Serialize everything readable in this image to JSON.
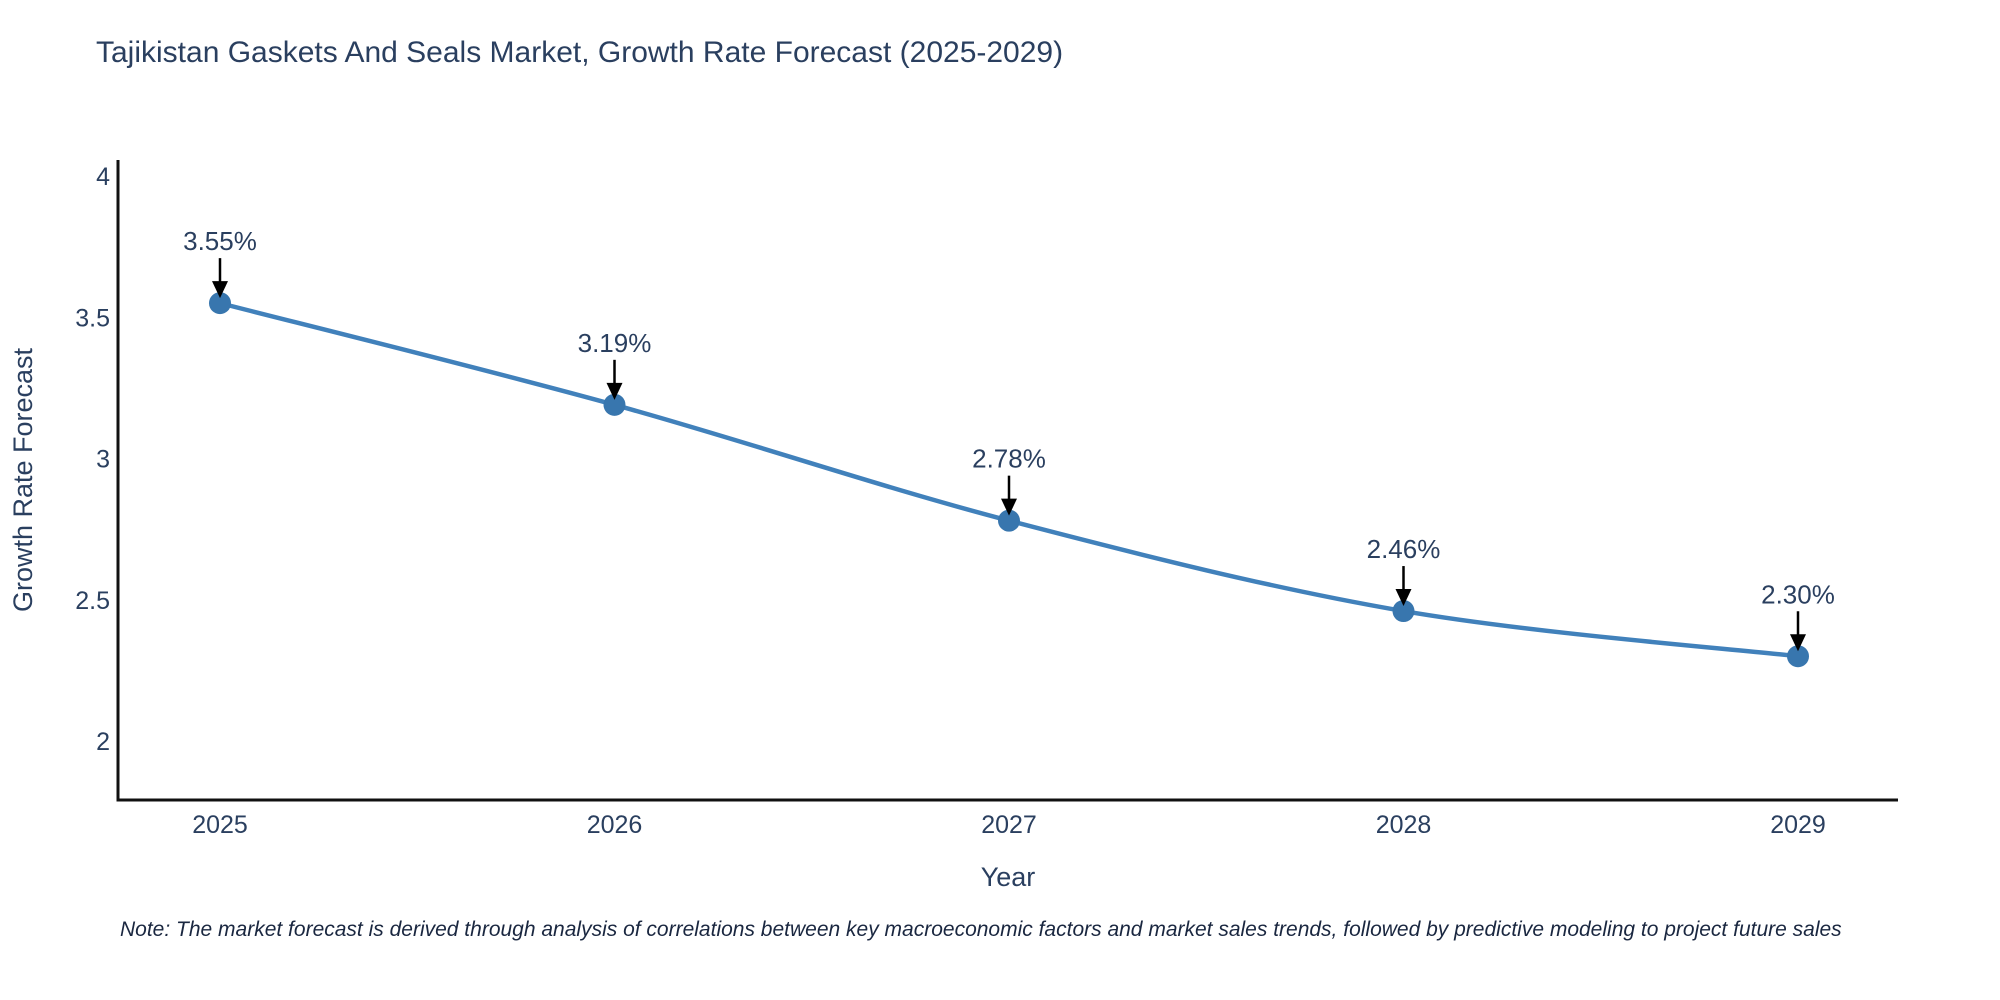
{
  "title": "Tajikistan Gaskets And Seals Market, Growth Rate Forecast (2025-2029)",
  "note": "Note: The market forecast is derived through analysis of correlations between key macroeconomic factors and market sales trends, followed by predictive modeling to project future sales",
  "chart_data": {
    "type": "line",
    "x": [
      2025,
      2026,
      2027,
      2028,
      2029
    ],
    "values": [
      3.55,
      3.19,
      2.78,
      2.46,
      2.3
    ],
    "point_labels": [
      "3.55%",
      "3.19%",
      "2.78%",
      "2.46%",
      "2.30%"
    ],
    "title": "Tajikistan Gaskets And Seals Market, Growth Rate Forecast (2025-2029)",
    "xlabel": "Year",
    "ylabel": "Growth Rate Forecast",
    "yticks": [
      2,
      2.5,
      3,
      3.5,
      4
    ],
    "ylim": [
      1.79,
      4.06
    ],
    "xlim": [
      2024.74,
      2029.25
    ],
    "grid": false,
    "legend": "none",
    "line_color": "#4181bb",
    "marker_color": "#3876ae",
    "arrow_color": "#000000",
    "axis_color": "#111111",
    "text_color": "#2a3f5f"
  }
}
